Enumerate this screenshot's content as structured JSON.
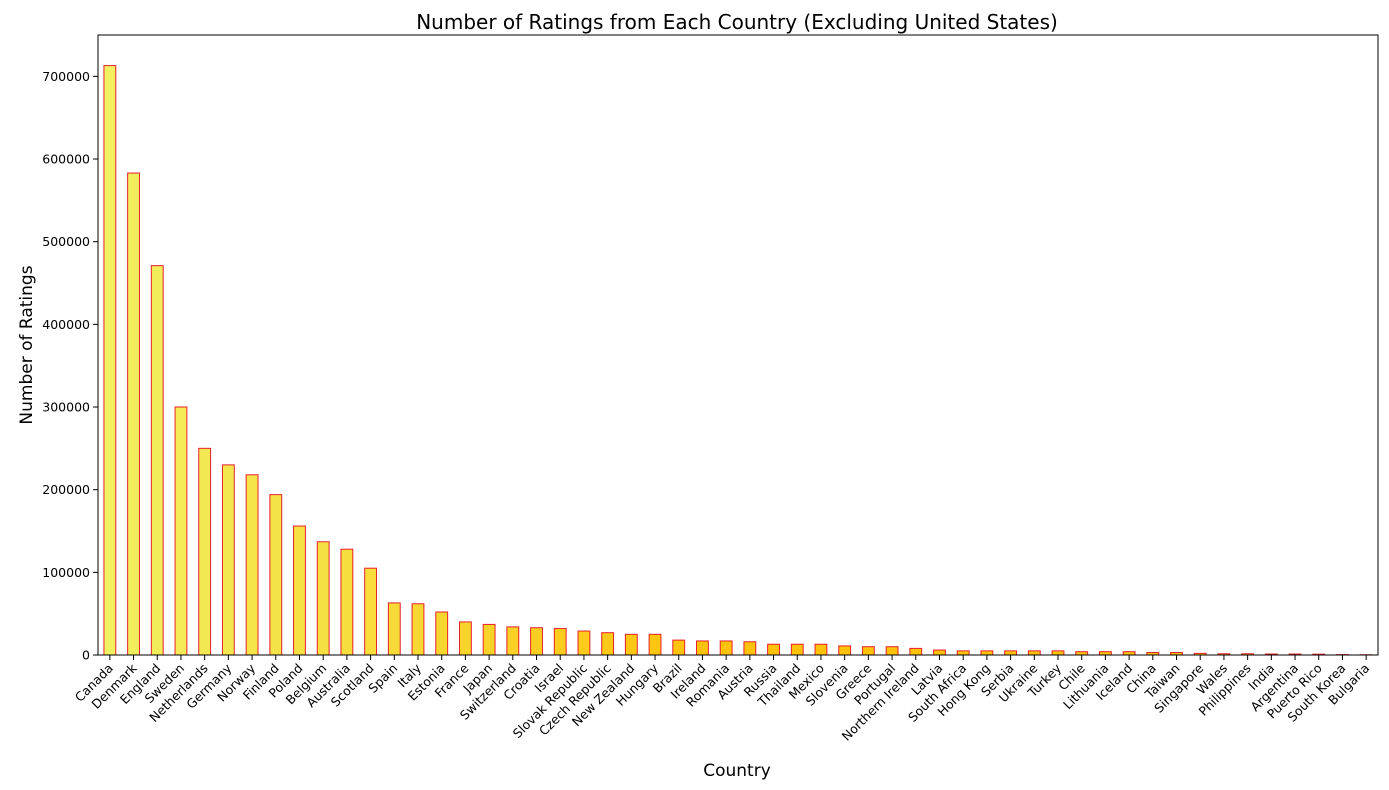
{
  "chart_data": {
    "type": "bar",
    "title": "Number of Ratings from Each Country (Excluding United States)",
    "xlabel": "Country",
    "ylabel": "Number of Ratings",
    "ylim": [
      0,
      750000
    ],
    "yticks": [
      0,
      100000,
      200000,
      300000,
      400000,
      500000,
      600000,
      700000
    ],
    "ytick_labels": [
      "0",
      "100000",
      "200000",
      "300000",
      "400000",
      "500000",
      "600000",
      "700000"
    ],
    "grid": false,
    "legend": "none",
    "bar_edge_color": "#e8202a",
    "bar_fill_start_color": "#f0f060",
    "bar_fill_end_color": "#ffc20a",
    "categories": [
      "Canada",
      "Denmark",
      "England",
      "Sweden",
      "Netherlands",
      "Germany",
      "Norway",
      "Finland",
      "Poland",
      "Belgium",
      "Australia",
      "Scotland",
      "Spain",
      "Italy",
      "Estonia",
      "France",
      "Japan",
      "Switzerland",
      "Croatia",
      "Israel",
      "Slovak Republic",
      "Czech Republic",
      "New Zealand",
      "Hungary",
      "Brazil",
      "Ireland",
      "Romania",
      "Austria",
      "Russia",
      "Thailand",
      "Mexico",
      "Slovenia",
      "Greece",
      "Portugal",
      "Northern Ireland",
      "Latvia",
      "South Africa",
      "Hong Kong",
      "Serbia",
      "Ukraine",
      "Turkey",
      "Chile",
      "Lithuania",
      "Iceland",
      "China",
      "Taiwan",
      "Singapore",
      "Wales",
      "Philippines",
      "India",
      "Argentina",
      "Puerto Rico",
      "South Korea",
      "Bulgaria"
    ],
    "values": [
      713000,
      583000,
      471000,
      300000,
      250000,
      230000,
      218000,
      194000,
      156000,
      137000,
      128000,
      105000,
      63000,
      62000,
      52000,
      40000,
      37000,
      34000,
      33000,
      32000,
      29000,
      27000,
      25000,
      25000,
      18000,
      17000,
      17000,
      16000,
      13000,
      13000,
      13000,
      11000,
      10000,
      10000,
      8000,
      6000,
      5000,
      5000,
      5000,
      5000,
      5000,
      4000,
      4000,
      4000,
      3000,
      3000,
      2000,
      1500,
      1500,
      1200,
      1200,
      1000,
      500,
      300
    ]
  }
}
